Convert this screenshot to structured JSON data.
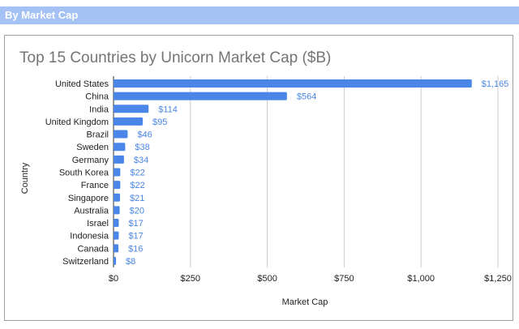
{
  "header": {
    "label": "By Market Cap"
  },
  "colors": {
    "header_bar": "#a4c2f4",
    "bar": "#4a86e8",
    "grid": "#cccccc"
  },
  "chart_data": {
    "type": "bar",
    "orientation": "horizontal",
    "title": "Top 15 Countries by Unicorn Market Cap ($B)",
    "xlabel": "Market Cap",
    "ylabel": "Country",
    "categories": [
      "United States",
      "China",
      "India",
      "United Kingdom",
      "Brazil",
      "Sweden",
      "Germany",
      "South Korea",
      "France",
      "Singapore",
      "Australia",
      "Israel",
      "Indonesia",
      "Canada",
      "Switzerland"
    ],
    "values": [
      1165,
      564,
      114,
      95,
      46,
      38,
      34,
      22,
      22,
      21,
      20,
      17,
      17,
      16,
      8
    ],
    "data_labels": [
      "$1,165",
      "$564",
      "$114",
      "$95",
      "$46",
      "$38",
      "$34",
      "$22",
      "$22",
      "$21",
      "$20",
      "$17",
      "$17",
      "$16",
      "$8"
    ],
    "xlim": [
      0,
      1250
    ],
    "xticks": [
      0,
      250,
      500,
      750,
      1000,
      1250
    ],
    "xtick_labels": [
      "$0",
      "$250",
      "$500",
      "$750",
      "$1,000",
      "$1,250"
    ],
    "grid": true,
    "legend": "none"
  }
}
